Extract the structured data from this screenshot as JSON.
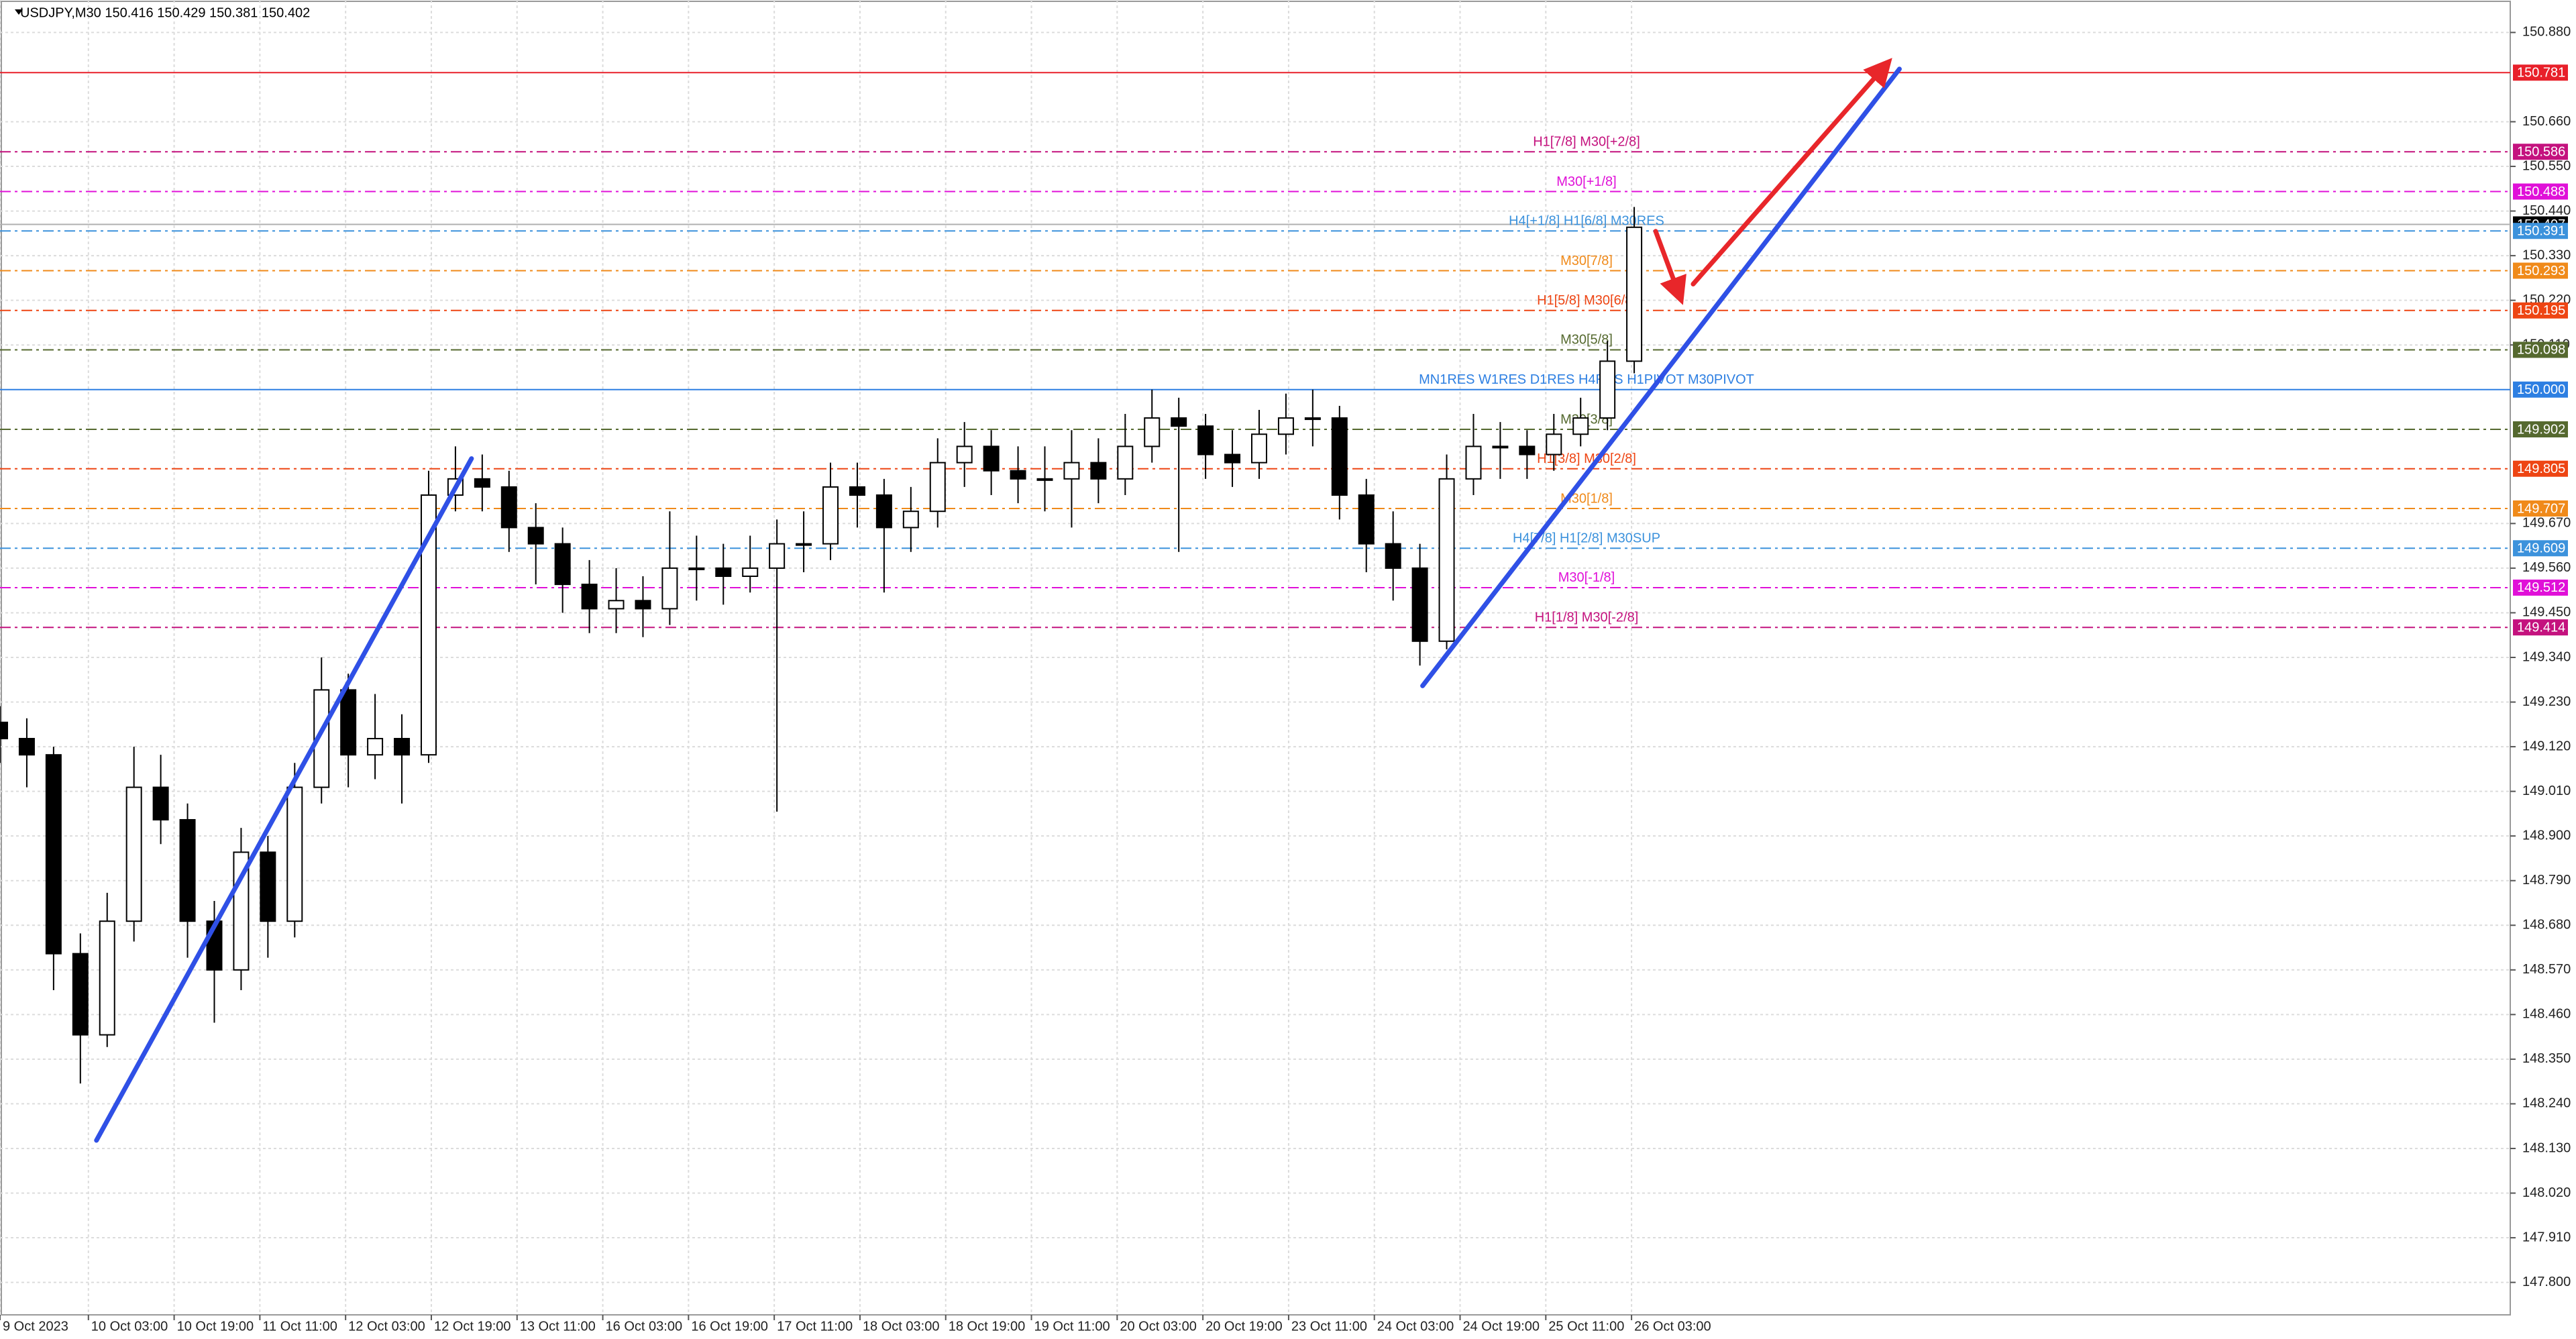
{
  "chart_data": {
    "type": "candlestick",
    "header": "USDJPY,M30  150.416 150.429 150.381 150.402",
    "xlim": [
      0,
      937
    ],
    "ylim": [
      147.72,
      150.96
    ],
    "grid": true,
    "xticks": [
      {
        "value": 0,
        "label": "9 Oct 2023"
      },
      {
        "value": 33,
        "label": "10 Oct 03:00"
      },
      {
        "value": 65,
        "label": "10 Oct 19:00"
      },
      {
        "value": 97,
        "label": "11 Oct 11:00"
      },
      {
        "value": 129,
        "label": "12 Oct 03:00"
      },
      {
        "value": 161,
        "label": "12 Oct 19:00"
      },
      {
        "value": 193,
        "label": "13 Oct 11:00"
      },
      {
        "value": 225,
        "label": "16 Oct 03:00"
      },
      {
        "value": 257,
        "label": "16 Oct 19:00"
      },
      {
        "value": 289,
        "label": "17 Oct 11:00"
      },
      {
        "value": 321,
        "label": "18 Oct 03:00"
      },
      {
        "value": 353,
        "label": "18 Oct 19:00"
      },
      {
        "value": 385,
        "label": "19 Oct 11:00"
      },
      {
        "value": 417,
        "label": "20 Oct 03:00"
      },
      {
        "value": 449,
        "label": "20 Oct 19:00"
      },
      {
        "value": 481,
        "label": "23 Oct 11:00"
      },
      {
        "value": 513,
        "label": "24 Oct 03:00"
      },
      {
        "value": 545,
        "label": "24 Oct 19:00"
      },
      {
        "value": 577,
        "label": "25 Oct 11:00"
      },
      {
        "value": 609,
        "label": "26 Oct 03:00"
      }
    ],
    "yticks": [
      {
        "value": 150.88,
        "label": "150.880"
      },
      {
        "value": 150.66,
        "label": "150.660"
      },
      {
        "value": 150.55,
        "label": "150.550"
      },
      {
        "value": 150.44,
        "label": "150.440"
      },
      {
        "value": 150.33,
        "label": "150.330"
      },
      {
        "value": 150.22,
        "label": "150.220"
      },
      {
        "value": 150.11,
        "label": "150.110"
      },
      {
        "value": 149.67,
        "label": "149.670"
      },
      {
        "value": 149.56,
        "label": "149.560"
      },
      {
        "value": 149.45,
        "label": "149.450"
      },
      {
        "value": 149.34,
        "label": "149.340"
      },
      {
        "value": 149.23,
        "label": "149.230"
      },
      {
        "value": 149.12,
        "label": "149.120"
      },
      {
        "value": 149.01,
        "label": "149.010"
      },
      {
        "value": 148.9,
        "label": "148.900"
      },
      {
        "value": 148.79,
        "label": "148.790"
      },
      {
        "value": 148.68,
        "label": "148.680"
      },
      {
        "value": 148.57,
        "label": "148.570"
      },
      {
        "value": 148.46,
        "label": "148.460"
      },
      {
        "value": 148.35,
        "label": "148.350"
      },
      {
        "value": 148.24,
        "label": "148.240"
      },
      {
        "value": 148.13,
        "label": "148.130"
      },
      {
        "value": 148.02,
        "label": "148.020"
      },
      {
        "value": 147.91,
        "label": "147.910"
      },
      {
        "value": 147.8,
        "label": "147.800"
      }
    ],
    "x": [
      0,
      10,
      20,
      30,
      40,
      50,
      60,
      70,
      80,
      90,
      100,
      110,
      120,
      130,
      140,
      150,
      160,
      170,
      180,
      190,
      200,
      210,
      220,
      230,
      240,
      250,
      260,
      270,
      280,
      290,
      300,
      310,
      320,
      330,
      340,
      350,
      360,
      370,
      380,
      390,
      400,
      410,
      420,
      430,
      440,
      450,
      460,
      470,
      480,
      490,
      500,
      510,
      520,
      530,
      540,
      550,
      560,
      570,
      580,
      590,
      600,
      610
    ],
    "open": [
      149.18,
      149.14,
      149.1,
      148.61,
      148.41,
      148.69,
      149.02,
      148.94,
      148.69,
      148.57,
      148.86,
      148.69,
      149.02,
      149.26,
      149.1,
      149.14,
      149.1,
      149.74,
      149.78,
      149.76,
      149.66,
      149.62,
      149.52,
      149.46,
      149.48,
      149.46,
      149.56,
      149.56,
      149.54,
      149.56,
      149.62,
      149.62,
      149.76,
      149.74,
      149.66,
      149.7,
      149.82,
      149.86,
      149.8,
      149.78,
      149.78,
      149.82,
      149.78,
      149.86,
      149.93,
      149.91,
      149.84,
      149.82,
      149.89,
      149.93,
      149.93,
      149.74,
      149.62,
      149.56,
      149.38,
      149.78,
      149.86,
      149.86,
      149.84,
      149.89,
      149.93,
      150.07
    ],
    "high": [
      149.22,
      149.19,
      149.12,
      148.66,
      148.76,
      149.12,
      149.1,
      148.98,
      148.74,
      148.92,
      148.9,
      149.08,
      149.34,
      149.3,
      149.25,
      149.2,
      149.8,
      149.86,
      149.84,
      149.8,
      149.72,
      149.66,
      149.58,
      149.56,
      149.54,
      149.7,
      149.64,
      149.62,
      149.64,
      149.68,
      149.7,
      149.82,
      149.82,
      149.78,
      149.76,
      149.88,
      149.92,
      149.9,
      149.86,
      149.86,
      149.9,
      149.88,
      149.94,
      150.0,
      149.98,
      149.94,
      149.9,
      149.95,
      149.99,
      150.0,
      149.96,
      149.78,
      149.7,
      149.62,
      149.84,
      149.94,
      149.92,
      149.9,
      149.94,
      149.98,
      150.12,
      150.45
    ],
    "low": [
      149.08,
      149.02,
      148.52,
      148.29,
      148.38,
      148.64,
      148.88,
      148.6,
      148.44,
      148.52,
      148.6,
      148.65,
      148.98,
      149.02,
      149.04,
      148.98,
      149.08,
      149.7,
      149.7,
      149.6,
      149.52,
      149.45,
      149.4,
      149.4,
      149.39,
      149.42,
      149.48,
      149.47,
      149.5,
      148.96,
      149.55,
      149.58,
      149.66,
      149.5,
      149.6,
      149.66,
      149.76,
      149.74,
      149.72,
      149.7,
      149.66,
      149.72,
      149.74,
      149.82,
      149.6,
      149.78,
      149.76,
      149.78,
      149.84,
      149.86,
      149.68,
      149.55,
      149.48,
      149.32,
      149.36,
      149.74,
      149.78,
      149.78,
      149.8,
      149.86,
      149.9,
      150.04
    ],
    "close": [
      149.14,
      149.1,
      148.61,
      148.41,
      148.69,
      149.02,
      148.94,
      148.69,
      148.57,
      148.86,
      148.69,
      149.02,
      149.26,
      149.1,
      149.14,
      149.1,
      149.74,
      149.78,
      149.76,
      149.66,
      149.62,
      149.52,
      149.46,
      149.48,
      149.46,
      149.56,
      149.56,
      149.54,
      149.56,
      149.62,
      149.62,
      149.76,
      149.74,
      149.66,
      149.7,
      149.82,
      149.86,
      149.8,
      149.78,
      149.78,
      149.82,
      149.78,
      149.86,
      149.93,
      149.91,
      149.84,
      149.82,
      149.89,
      149.93,
      149.93,
      149.74,
      149.62,
      149.56,
      149.38,
      149.78,
      149.86,
      149.86,
      149.84,
      149.89,
      149.93,
      150.07,
      150.4
    ],
    "levels": [
      {
        "price": 150.781,
        "color": "#e8202a",
        "dash": "solid"
      },
      {
        "price": 150.586,
        "color": "#c4127e",
        "dash": "dashdot",
        "text": "H1[7/8] M30[+2/8]"
      },
      {
        "price": 150.488,
        "color": "#e010d8",
        "dash": "dashdot",
        "text": "M30[+1/8]"
      },
      {
        "price": 150.407,
        "color": "#000000",
        "dash": "current"
      },
      {
        "price": 150.391,
        "color": "#3c92dc",
        "dash": "dashdot",
        "text": "H4[+1/8] H1[6/8] M30RES"
      },
      {
        "price": 150.293,
        "color": "#f08a1a",
        "dash": "dashdot",
        "text": "M30[7/8]"
      },
      {
        "price": 150.195,
        "color": "#ee4513",
        "dash": "dashdot",
        "text": "H1[5/8] M30[6/8]"
      },
      {
        "price": 150.098,
        "color": "#55692f",
        "dash": "dashdot",
        "text": "M30[5/8]"
      },
      {
        "price": 150.0,
        "label": "150.000",
        "color": "#2d7fe2",
        "dash": "solid",
        "text": "MN1RES W1RES D1RES H4RES H1PIVOT M30PIVOT"
      },
      {
        "price": 149.902,
        "color": "#55692f",
        "dash": "dashdot",
        "text": "M30[3/8]"
      },
      {
        "price": 149.805,
        "color": "#ee4513",
        "dash": "dashdot",
        "text": "H1[3/8] M30[2/8]"
      },
      {
        "price": 149.707,
        "color": "#f08a1a",
        "dash": "dashdot",
        "text": "M30[1/8]"
      },
      {
        "price": 149.609,
        "color": "#3c92dc",
        "dash": "dashdot",
        "text": "H4[7/8] H1[2/8] M30SUP"
      },
      {
        "price": 149.512,
        "color": "#e010d8",
        "dash": "dashdot",
        "text": "M30[-1/8]"
      },
      {
        "price": 149.414,
        "color": "#c4127e",
        "dash": "dashdot",
        "text": "H1[1/8] M30[-2/8]"
      }
    ],
    "trendlines": [
      {
        "x": [
          36,
          176
        ],
        "y": [
          148.15,
          149.83
        ],
        "color": "#2f50e6"
      },
      {
        "x": [
          531,
          709
        ],
        "y": [
          149.27,
          150.79
        ],
        "color": "#2f50e6"
      },
      {
        "x": [
          618,
          627
        ],
        "y": [
          150.39,
          150.23
        ],
        "color": "#e8262a",
        "arrow": true
      },
      {
        "x": [
          632,
          704
        ],
        "y": [
          150.26,
          150.8
        ],
        "color": "#e8262a",
        "arrow": true
      }
    ]
  }
}
